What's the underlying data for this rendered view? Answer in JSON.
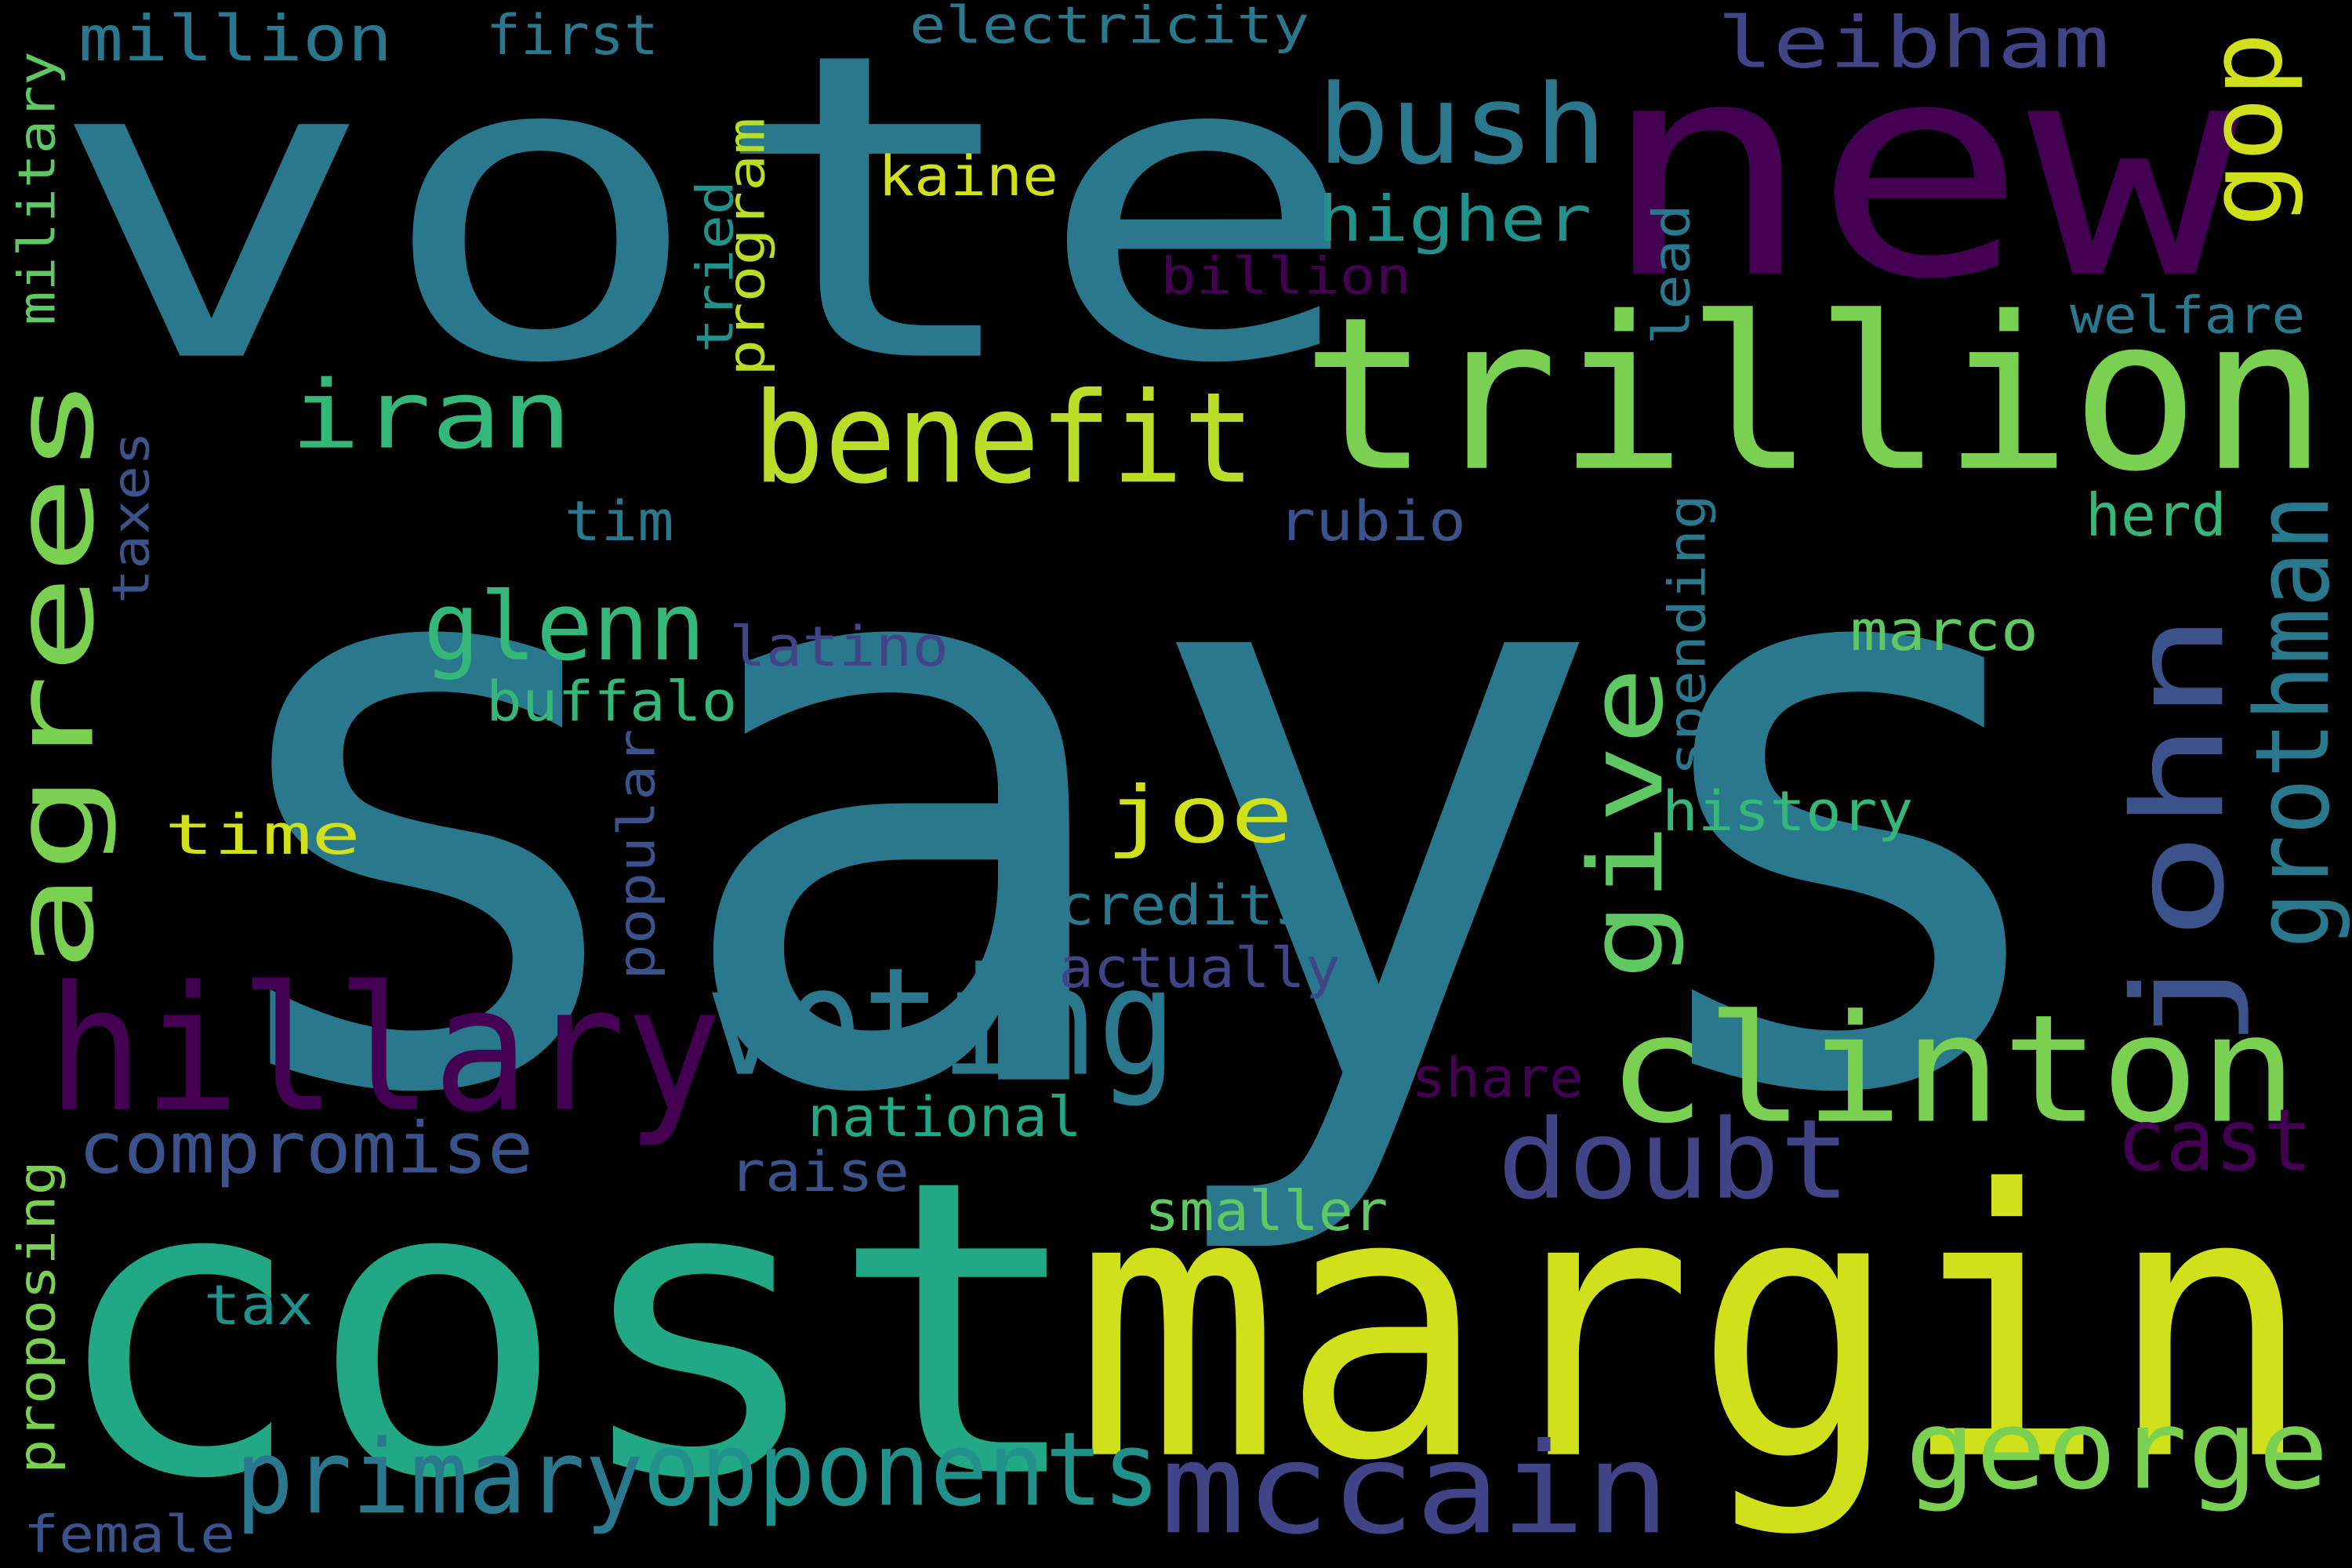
{
  "words": [
    {
      "text": "says",
      "color": "#2A788E"
    },
    {
      "text": "vote",
      "color": "#2A788E"
    },
    {
      "text": "cost",
      "color": "#22A884"
    },
    {
      "text": "margin",
      "color": "#D0E11C"
    },
    {
      "text": "new",
      "color": "#440154"
    },
    {
      "text": "trillion",
      "color": "#7AD151"
    },
    {
      "text": "hillary",
      "color": "#440154"
    },
    {
      "text": "clinton",
      "color": "#7AD151"
    },
    {
      "text": "mccain",
      "color": "#414487"
    },
    {
      "text": "agrees",
      "color": "#7AD151"
    },
    {
      "text": "voting",
      "color": "#2A788E"
    },
    {
      "text": "john",
      "color": "#3B528B"
    },
    {
      "text": "bush",
      "color": "#2A788E"
    },
    {
      "text": "benefit",
      "color": "#BADE28"
    },
    {
      "text": "george",
      "color": "#7AD151"
    },
    {
      "text": "opponents",
      "color": "#21918C"
    },
    {
      "text": "primary",
      "color": "#2A788E"
    },
    {
      "text": "doubt",
      "color": "#414487"
    },
    {
      "text": "iran",
      "color": "#35B779"
    },
    {
      "text": "leibham",
      "color": "#414487"
    },
    {
      "text": "gop",
      "color": "#D0E11C"
    },
    {
      "text": "give",
      "color": "#5EC962"
    },
    {
      "text": "grothman",
      "color": "#2A788E"
    },
    {
      "text": "glenn",
      "color": "#35B779"
    },
    {
      "text": "joe",
      "color": "#D0E11C"
    },
    {
      "text": "cast",
      "color": "#440154"
    },
    {
      "text": "compromise",
      "color": "#3B528B"
    },
    {
      "text": "higher",
      "color": "#21918C"
    },
    {
      "text": "million",
      "color": "#2A788E"
    },
    {
      "text": "first",
      "color": "#2A788E"
    },
    {
      "text": "electricity",
      "color": "#2A788E"
    },
    {
      "text": "kaine",
      "color": "#D0E11C"
    },
    {
      "text": "billion",
      "color": "#440154"
    },
    {
      "text": "welfare",
      "color": "#2A788E"
    },
    {
      "text": "tried",
      "color": "#21918C"
    },
    {
      "text": "program",
      "color": "#BADE28"
    },
    {
      "text": "lead",
      "color": "#2A788E"
    },
    {
      "text": "military",
      "color": "#5EC962"
    },
    {
      "text": "taxes",
      "color": "#3B528B"
    },
    {
      "text": "tim",
      "color": "#2A788E"
    },
    {
      "text": "rubio",
      "color": "#3B528B"
    },
    {
      "text": "herd",
      "color": "#35B779"
    },
    {
      "text": "spending",
      "color": "#2A788E"
    },
    {
      "text": "latino",
      "color": "#414487"
    },
    {
      "text": "buffalo",
      "color": "#35B779"
    },
    {
      "text": "marco",
      "color": "#5EC962"
    },
    {
      "text": "popular",
      "color": "#3B528B"
    },
    {
      "text": "history",
      "color": "#35B779"
    },
    {
      "text": "time",
      "color": "#D0E11C"
    },
    {
      "text": "credits",
      "color": "#2A788E"
    },
    {
      "text": "actually",
      "color": "#414487"
    },
    {
      "text": "share",
      "color": "#440154"
    },
    {
      "text": "national",
      "color": "#22A884"
    },
    {
      "text": "raise",
      "color": "#3B528B"
    },
    {
      "text": "smaller",
      "color": "#5EC962"
    },
    {
      "text": "proposing",
      "color": "#7AD151"
    },
    {
      "text": "tax",
      "color": "#21918C"
    },
    {
      "text": "female",
      "color": "#3B528B"
    }
  ]
}
